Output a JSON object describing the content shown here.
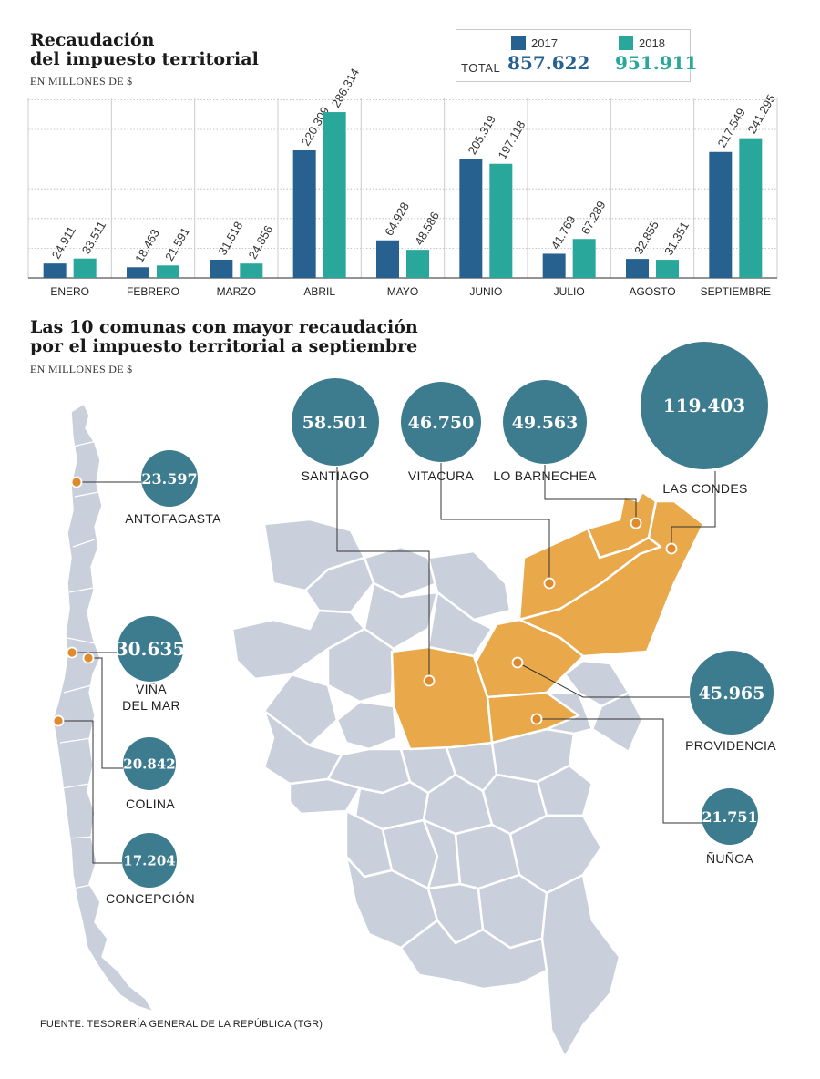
{
  "colors": {
    "y2017": "#27618f",
    "y2018": "#2aa79b",
    "bubble": "#3d7b8f",
    "highlight": "#e9a94a",
    "region": "#c9cfdb",
    "dot": "#e08a2e"
  },
  "bar_section": {
    "title_line1": "Recaudación",
    "title_line2": "del impuesto territorial",
    "subtitle": "EN MILLONES DE $"
  },
  "legend": {
    "year_a": "2017",
    "year_b": "2018",
    "total_label": "TOTAL",
    "total_a": "857.622",
    "total_b": "951.911"
  },
  "chart_data": [
    {
      "type": "bar",
      "title": "Recaudación del impuesto territorial",
      "ylabel": "EN MILLONES DE $",
      "categories": [
        "ENERO",
        "FEBRERO",
        "MARZO",
        "ABRIL",
        "MAYO",
        "JUNIO",
        "JULIO",
        "AGOSTO",
        "SEPTIEMBRE"
      ],
      "series": [
        {
          "name": "2017",
          "values": [
            24911,
            18463,
            31518,
            220309,
            64928,
            205319,
            41769,
            32855,
            217549
          ],
          "labels": [
            "24.911",
            "18.463",
            "31.518",
            "220.309",
            "64.928",
            "205.319",
            "41.769",
            "32.855",
            "217.549"
          ]
        },
        {
          "name": "2018",
          "values": [
            33511,
            21591,
            24856,
            286314,
            48586,
            197118,
            67289,
            31351,
            241295
          ],
          "labels": [
            "33.511",
            "21.591",
            "24.856",
            "286.314",
            "48.586",
            "197.118",
            "67.289",
            "31.351",
            "241.295"
          ]
        }
      ],
      "ylim": [
        0,
        310000
      ],
      "grid": true,
      "legend": "top-right"
    },
    {
      "type": "bubble",
      "title": "Las 10 comunas con mayor recaudación por el impuesto territorial a septiembre",
      "ylabel": "EN MILLONES DE $",
      "categories": [
        "SANTIAGO",
        "VITACURA",
        "LO BARNECHEA",
        "LAS CONDES",
        "PROVIDENCIA",
        "ÑUÑOA",
        "ANTOFAGASTA",
        "VIÑA DEL MAR",
        "COLINA",
        "CONCEPCIÓN"
      ],
      "values": [
        58501,
        46750,
        49563,
        119403,
        45965,
        21751,
        23597,
        30635,
        20842,
        17204
      ],
      "labels": [
        "58.501",
        "46.750",
        "49.563",
        "119.403",
        "45.965",
        "21.751",
        "23.597",
        "30.635",
        "20.842",
        "17.204"
      ]
    }
  ],
  "map_section": {
    "title_line1": "Las 10 comunas con mayor recaudación",
    "title_line2": "por el impuesto territorial a septiembre",
    "subtitle": "EN MILLONES DE $"
  },
  "bubbles": [
    {
      "value": "58.501",
      "name": "SANTIAGO"
    },
    {
      "value": "46.750",
      "name": "VITACURA"
    },
    {
      "value": "49.563",
      "name": "LO BARNECHEA"
    },
    {
      "value": "119.403",
      "name": "LAS CONDES"
    },
    {
      "value": "45.965",
      "name": "PROVIDENCIA"
    },
    {
      "value": "21.751",
      "name": "ÑUÑOA"
    },
    {
      "value": "23.597",
      "name": "ANTOFAGASTA"
    },
    {
      "value": "30.635",
      "name": "VIÑA",
      "name2": "DEL MAR"
    },
    {
      "value": "20.842",
      "name": "COLINA"
    },
    {
      "value": "17.204",
      "name": "CONCEPCIÓN"
    }
  ],
  "footer": "FUENTE: TESORERÍA GENERAL DE LA REPÚBLICA (TGR)"
}
